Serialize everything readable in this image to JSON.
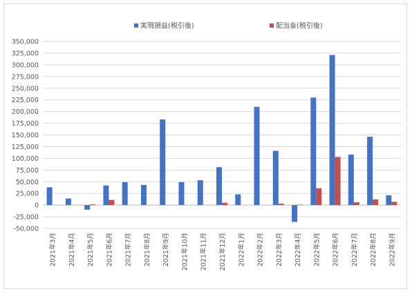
{
  "chart_data": {
    "type": "bar",
    "title": "",
    "xlabel": "",
    "ylabel": "",
    "ylim": [
      -50000,
      350000
    ],
    "ytick_step": 25000,
    "yticks": [
      "-50,000",
      "-25,000",
      "0",
      "25,000",
      "50,000",
      "75,000",
      "100,000",
      "125,000",
      "150,000",
      "175,000",
      "200,000",
      "225,000",
      "250,000",
      "275,000",
      "300,000",
      "325,000",
      "350,000"
    ],
    "grid": true,
    "legend_position": "top",
    "categories": [
      "2021年3月",
      "2021年4月",
      "2021年5月",
      "2021年6月",
      "2021年7月",
      "2021年8月",
      "2021年9月",
      "2021年10月",
      "2021年11月",
      "2021年12月",
      "2022年1月",
      "2022年2月",
      "2022年3月",
      "2022年4月",
      "2022年5月",
      "2022年6月",
      "2022年7月",
      "2022年8月",
      "2022年9月"
    ],
    "series": [
      {
        "name": "実現損益(税引後)",
        "color": "#4472C4",
        "values": [
          38000,
          14000,
          -10000,
          42000,
          49000,
          43000,
          183000,
          49000,
          53000,
          81000,
          23000,
          210000,
          116000,
          -36000,
          230000,
          321000,
          108000,
          146000,
          21000
        ]
      },
      {
        "name": "配当金(税引後)",
        "color": "#C0504D",
        "values": [
          0,
          0,
          1500,
          11000,
          0,
          0,
          0,
          0,
          0,
          5000,
          0,
          0,
          3000,
          1000,
          36000,
          103000,
          6000,
          12000,
          7000
        ]
      }
    ]
  }
}
